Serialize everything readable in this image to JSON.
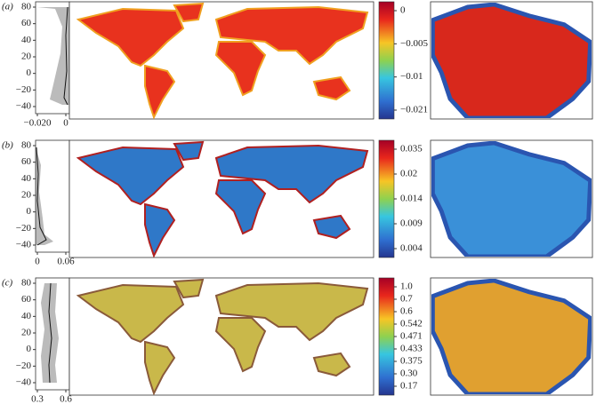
{
  "panels": [
    {
      "label": "(a)",
      "profile": {
        "yticks": [
          "80",
          "60",
          "40",
          "20",
          "0",
          "−20",
          "−40"
        ],
        "xticks": [
          "−0.020",
          "0"
        ]
      },
      "colorbar": [
        "0",
        "−0.005",
        "−0.01",
        "−0.021"
      ]
    },
    {
      "label": "(b)",
      "profile": {
        "yticks": [
          "80",
          "60",
          "40",
          "20",
          "0",
          "−20",
          "−40"
        ],
        "xticks": [
          "0",
          "0.06"
        ]
      },
      "colorbar": [
        "0.035",
        "0.02",
        "0.014",
        "0.009",
        "0.004"
      ]
    },
    {
      "label": "(c)",
      "profile": {
        "yticks": [
          "80",
          "60",
          "40",
          "20",
          "0",
          "−20",
          "−40"
        ],
        "xticks": [
          "0.3",
          "0.6"
        ]
      },
      "colorbar": [
        "1.0",
        "0.7",
        "0.6",
        "0.542",
        "0.471",
        "0.433",
        "0.375",
        "0.30",
        "0.17"
      ]
    }
  ]
}
